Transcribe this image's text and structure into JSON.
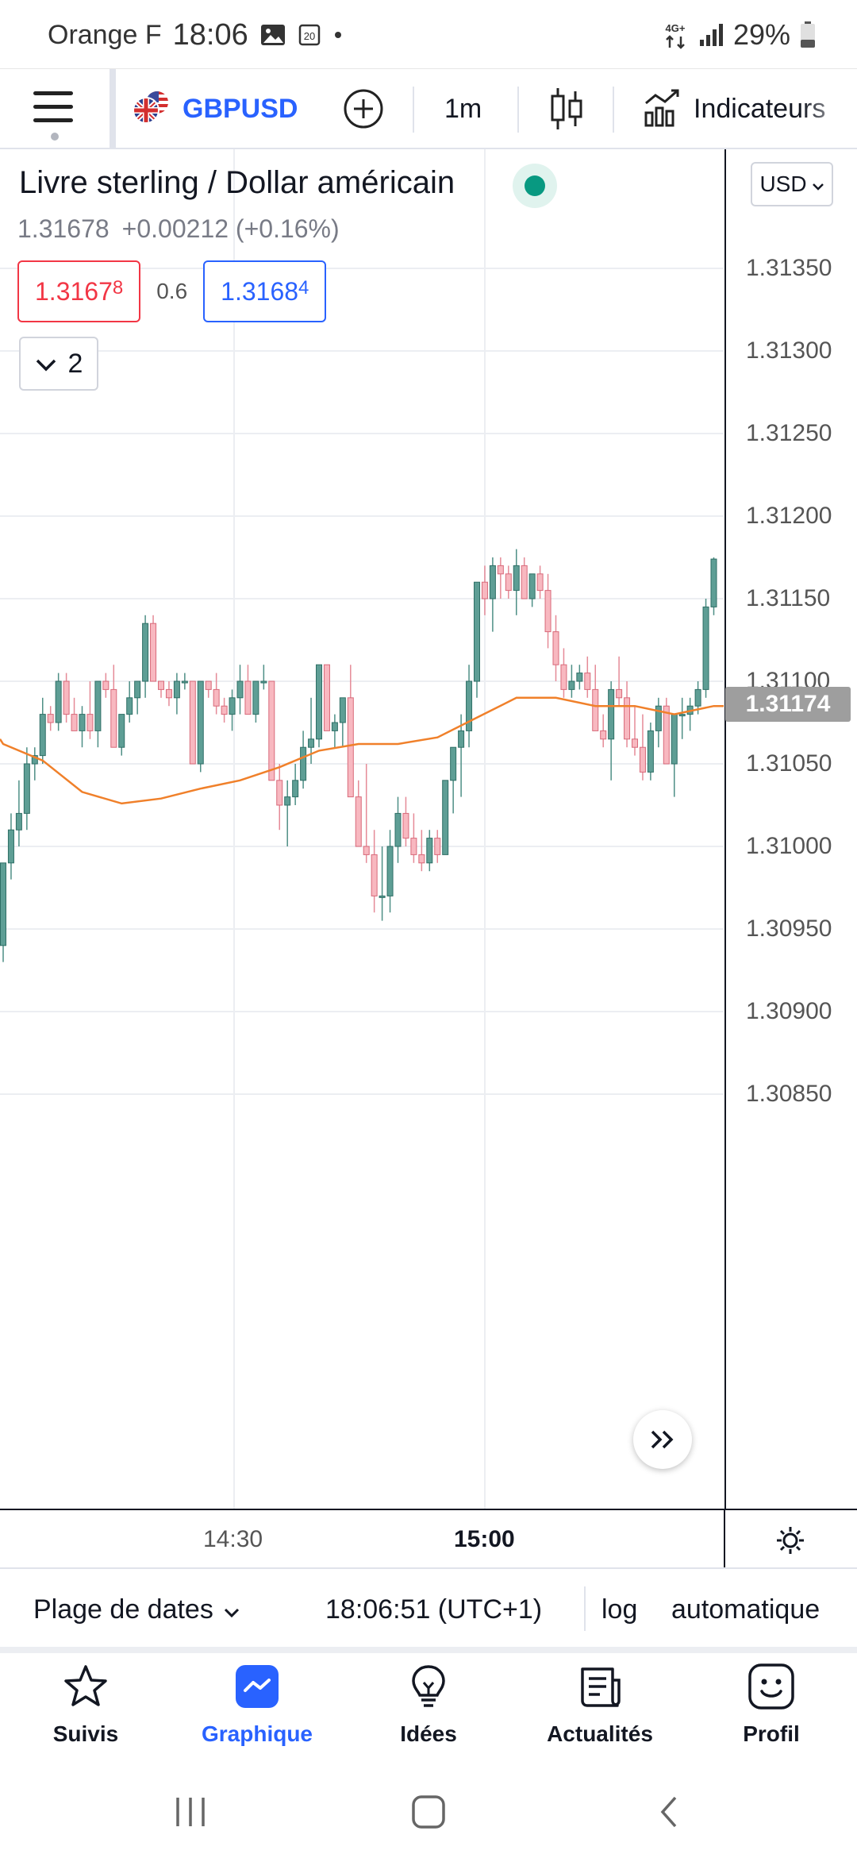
{
  "status_bar": {
    "carrier": "Orange F",
    "time": "18:06",
    "network": "4G+",
    "battery": "29%"
  },
  "toolbar": {
    "symbol": "GBPUSD",
    "interval": "1m",
    "indicators_label": "Indicateurs"
  },
  "legend": {
    "title": "Livre sterling / Dollar américain",
    "price": "1.31678",
    "change": "+0.00212 (+0.16%)",
    "sell_main": "1.3167",
    "sell_pip": "8",
    "spread": "0.6",
    "buy_main": "1.3168",
    "buy_pip": "4",
    "collapsed_count": "2"
  },
  "price_scale": {
    "currency": "USD",
    "last_price": "1.31174"
  },
  "time_axis": {
    "label_1": "14:30",
    "label_2": "15:00"
  },
  "info_bar": {
    "date_range": "Plage de dates",
    "clock": "18:06:51 (UTC+1)",
    "log": "log",
    "auto": "automatique"
  },
  "bottom_nav": [
    {
      "label": "Suivis",
      "icon": "star-icon"
    },
    {
      "label": "Graphique",
      "icon": "chart-icon"
    },
    {
      "label": "Idées",
      "icon": "lightbulb-icon"
    },
    {
      "label": "Actualités",
      "icon": "news-icon"
    },
    {
      "label": "Profil",
      "icon": "smiley-icon"
    }
  ],
  "colors": {
    "up": "#5e9e95",
    "down": "#f8b8c0",
    "ma": "#f0802a",
    "accent": "#2962ff"
  },
  "chart_data": {
    "type": "candlestick",
    "interval": "1m",
    "y_ticks": [
      "1.31350",
      "1.31300",
      "1.31250",
      "1.31200",
      "1.31150",
      "1.31100",
      "1.31050",
      "1.31000",
      "1.30950",
      "1.30900",
      "1.30850"
    ],
    "ylim": [
      1.3085,
      1.3137
    ],
    "x_ticks": [
      "14:30",
      "15:00"
    ],
    "candles": [
      {
        "o": 1.3094,
        "h": 1.3099,
        "l": 1.3093,
        "c": 1.3099
      },
      {
        "o": 1.3099,
        "h": 1.3102,
        "l": 1.3098,
        "c": 1.3101
      },
      {
        "o": 1.3101,
        "h": 1.3104,
        "l": 1.31,
        "c": 1.3102
      },
      {
        "o": 1.3102,
        "h": 1.3106,
        "l": 1.3101,
        "c": 1.3105
      },
      {
        "o": 1.3105,
        "h": 1.3106,
        "l": 1.3104,
        "c": 1.31055
      },
      {
        "o": 1.31055,
        "h": 1.3109,
        "l": 1.3105,
        "c": 1.3108
      },
      {
        "o": 1.3108,
        "h": 1.31085,
        "l": 1.3107,
        "c": 1.31075
      },
      {
        "o": 1.31075,
        "h": 1.31105,
        "l": 1.3107,
        "c": 1.311
      },
      {
        "o": 1.311,
        "h": 1.31105,
        "l": 1.31075,
        "c": 1.3108
      },
      {
        "o": 1.3108,
        "h": 1.3109,
        "l": 1.3107,
        "c": 1.3107
      },
      {
        "o": 1.3107,
        "h": 1.31085,
        "l": 1.3106,
        "c": 1.3108
      },
      {
        "o": 1.3108,
        "h": 1.311,
        "l": 1.31065,
        "c": 1.3107
      },
      {
        "o": 1.3107,
        "h": 1.311,
        "l": 1.3106,
        "c": 1.311
      },
      {
        "o": 1.311,
        "h": 1.31105,
        "l": 1.3109,
        "c": 1.31095
      },
      {
        "o": 1.31095,
        "h": 1.3111,
        "l": 1.3106,
        "c": 1.3106
      },
      {
        "o": 1.3106,
        "h": 1.3108,
        "l": 1.31055,
        "c": 1.3108
      },
      {
        "o": 1.3108,
        "h": 1.311,
        "l": 1.31075,
        "c": 1.3109
      },
      {
        "o": 1.3109,
        "h": 1.311,
        "l": 1.3108,
        "c": 1.311
      },
      {
        "o": 1.311,
        "h": 1.3114,
        "l": 1.3109,
        "c": 1.31135
      },
      {
        "o": 1.31135,
        "h": 1.3114,
        "l": 1.311,
        "c": 1.311
      },
      {
        "o": 1.311,
        "h": 1.311,
        "l": 1.3109,
        "c": 1.31095
      },
      {
        "o": 1.31095,
        "h": 1.311,
        "l": 1.31085,
        "c": 1.3109
      },
      {
        "o": 1.3109,
        "h": 1.31105,
        "l": 1.3108,
        "c": 1.311
      },
      {
        "o": 1.311,
        "h": 1.31105,
        "l": 1.31095,
        "c": 1.311
      },
      {
        "o": 1.311,
        "h": 1.311,
        "l": 1.3105,
        "c": 1.3105
      },
      {
        "o": 1.3105,
        "h": 1.311,
        "l": 1.31045,
        "c": 1.311
      },
      {
        "o": 1.311,
        "h": 1.311,
        "l": 1.3109,
        "c": 1.31095
      },
      {
        "o": 1.31095,
        "h": 1.31105,
        "l": 1.3108,
        "c": 1.31085
      },
      {
        "o": 1.31085,
        "h": 1.3109,
        "l": 1.31075,
        "c": 1.3108
      },
      {
        "o": 1.3108,
        "h": 1.31095,
        "l": 1.3107,
        "c": 1.3109
      },
      {
        "o": 1.3109,
        "h": 1.3111,
        "l": 1.3108,
        "c": 1.311
      },
      {
        "o": 1.311,
        "h": 1.3111,
        "l": 1.3108,
        "c": 1.3108
      },
      {
        "o": 1.3108,
        "h": 1.311,
        "l": 1.31075,
        "c": 1.311
      },
      {
        "o": 1.311,
        "h": 1.3111,
        "l": 1.31095,
        "c": 1.311
      },
      {
        "o": 1.311,
        "h": 1.311,
        "l": 1.3104,
        "c": 1.3104
      },
      {
        "o": 1.3104,
        "h": 1.3105,
        "l": 1.3101,
        "c": 1.31025
      },
      {
        "o": 1.31025,
        "h": 1.3104,
        "l": 1.31,
        "c": 1.3103
      },
      {
        "o": 1.3103,
        "h": 1.3105,
        "l": 1.31025,
        "c": 1.3104
      },
      {
        "o": 1.3104,
        "h": 1.3107,
        "l": 1.31035,
        "c": 1.3106
      },
      {
        "o": 1.3106,
        "h": 1.3109,
        "l": 1.3105,
        "c": 1.31065
      },
      {
        "o": 1.31065,
        "h": 1.3111,
        "l": 1.3106,
        "c": 1.3111
      },
      {
        "o": 1.3111,
        "h": 1.3111,
        "l": 1.3107,
        "c": 1.3107
      },
      {
        "o": 1.3107,
        "h": 1.3108,
        "l": 1.3106,
        "c": 1.31075
      },
      {
        "o": 1.31075,
        "h": 1.3109,
        "l": 1.3106,
        "c": 1.3109
      },
      {
        "o": 1.3109,
        "h": 1.3111,
        "l": 1.3103,
        "c": 1.3103
      },
      {
        "o": 1.3103,
        "h": 1.3104,
        "l": 1.31,
        "c": 1.31
      },
      {
        "o": 1.31,
        "h": 1.3105,
        "l": 1.3099,
        "c": 1.30995
      },
      {
        "o": 1.30995,
        "h": 1.3101,
        "l": 1.3096,
        "c": 1.3097
      },
      {
        "o": 1.3097,
        "h": 1.31,
        "l": 1.30955,
        "c": 1.3097
      },
      {
        "o": 1.3097,
        "h": 1.3101,
        "l": 1.3096,
        "c": 1.31
      },
      {
        "o": 1.31,
        "h": 1.3103,
        "l": 1.3099,
        "c": 1.3102
      },
      {
        "o": 1.3102,
        "h": 1.3103,
        "l": 1.31,
        "c": 1.31005
      },
      {
        "o": 1.31005,
        "h": 1.3102,
        "l": 1.3099,
        "c": 1.30995
      },
      {
        "o": 1.30995,
        "h": 1.3101,
        "l": 1.30985,
        "c": 1.3099
      },
      {
        "o": 1.3099,
        "h": 1.3101,
        "l": 1.30985,
        "c": 1.31005
      },
      {
        "o": 1.31005,
        "h": 1.3101,
        "l": 1.3099,
        "c": 1.30995
      },
      {
        "o": 1.30995,
        "h": 1.3104,
        "l": 1.30995,
        "c": 1.3104
      },
      {
        "o": 1.3104,
        "h": 1.3106,
        "l": 1.3102,
        "c": 1.3106
      },
      {
        "o": 1.3106,
        "h": 1.3108,
        "l": 1.3103,
        "c": 1.3107
      },
      {
        "o": 1.3107,
        "h": 1.3111,
        "l": 1.3106,
        "c": 1.311
      },
      {
        "o": 1.311,
        "h": 1.3116,
        "l": 1.3109,
        "c": 1.3116
      },
      {
        "o": 1.3116,
        "h": 1.3117,
        "l": 1.3114,
        "c": 1.3115
      },
      {
        "o": 1.3115,
        "h": 1.31175,
        "l": 1.3113,
        "c": 1.3117
      },
      {
        "o": 1.3117,
        "h": 1.31175,
        "l": 1.3115,
        "c": 1.31165
      },
      {
        "o": 1.31165,
        "h": 1.3117,
        "l": 1.3115,
        "c": 1.31155
      },
      {
        "o": 1.31155,
        "h": 1.3118,
        "l": 1.3114,
        "c": 1.3117
      },
      {
        "o": 1.3117,
        "h": 1.31175,
        "l": 1.3115,
        "c": 1.3115
      },
      {
        "o": 1.3115,
        "h": 1.31165,
        "l": 1.31145,
        "c": 1.31165
      },
      {
        "o": 1.31165,
        "h": 1.3117,
        "l": 1.3115,
        "c": 1.31155
      },
      {
        "o": 1.31155,
        "h": 1.31165,
        "l": 1.3112,
        "c": 1.3113
      },
      {
        "o": 1.3113,
        "h": 1.3114,
        "l": 1.311,
        "c": 1.3111
      },
      {
        "o": 1.3111,
        "h": 1.3112,
        "l": 1.3109,
        "c": 1.31095
      },
      {
        "o": 1.31095,
        "h": 1.3111,
        "l": 1.3109,
        "c": 1.311
      },
      {
        "o": 1.311,
        "h": 1.3111,
        "l": 1.31095,
        "c": 1.31105
      },
      {
        "o": 1.31105,
        "h": 1.31115,
        "l": 1.3109,
        "c": 1.31095
      },
      {
        "o": 1.31095,
        "h": 1.3111,
        "l": 1.3107,
        "c": 1.3107
      },
      {
        "o": 1.3107,
        "h": 1.3108,
        "l": 1.3106,
        "c": 1.31065
      },
      {
        "o": 1.31065,
        "h": 1.311,
        "l": 1.3104,
        "c": 1.31095
      },
      {
        "o": 1.31095,
        "h": 1.31115,
        "l": 1.31085,
        "c": 1.3109
      },
      {
        "o": 1.3109,
        "h": 1.311,
        "l": 1.3106,
        "c": 1.31065
      },
      {
        "o": 1.31065,
        "h": 1.31085,
        "l": 1.31055,
        "c": 1.3106
      },
      {
        "o": 1.3106,
        "h": 1.3108,
        "l": 1.3104,
        "c": 1.31045
      },
      {
        "o": 1.31045,
        "h": 1.31075,
        "l": 1.3104,
        "c": 1.3107
      },
      {
        "o": 1.3107,
        "h": 1.3109,
        "l": 1.3106,
        "c": 1.31085
      },
      {
        "o": 1.31085,
        "h": 1.3109,
        "l": 1.3105,
        "c": 1.3105
      },
      {
        "o": 1.3105,
        "h": 1.3108,
        "l": 1.3103,
        "c": 1.3108
      },
      {
        "o": 1.3108,
        "h": 1.3109,
        "l": 1.31065,
        "c": 1.3108
      },
      {
        "o": 1.3108,
        "h": 1.3109,
        "l": 1.3107,
        "c": 1.31085
      },
      {
        "o": 1.31085,
        "h": 1.311,
        "l": 1.3108,
        "c": 1.31095
      },
      {
        "o": 1.31095,
        "h": 1.3115,
        "l": 1.3109,
        "c": 1.31145
      },
      {
        "o": 1.31145,
        "h": 1.31175,
        "l": 1.3114,
        "c": 1.31174
      }
    ],
    "ma_series": {
      "name": "",
      "x_index": [
        0,
        5,
        10,
        15,
        20,
        25,
        30,
        35,
        40,
        45,
        50,
        55,
        60,
        65,
        70,
        75,
        80,
        85,
        90
      ],
      "values": [
        1.31062,
        1.31052,
        1.31033,
        1.31026,
        1.31029,
        1.31035,
        1.3104,
        1.31048,
        1.31058,
        1.31062,
        1.31062,
        1.31066,
        1.31078,
        1.3109,
        1.3109,
        1.31085,
        1.31085,
        1.3108,
        1.31085
      ]
    }
  }
}
